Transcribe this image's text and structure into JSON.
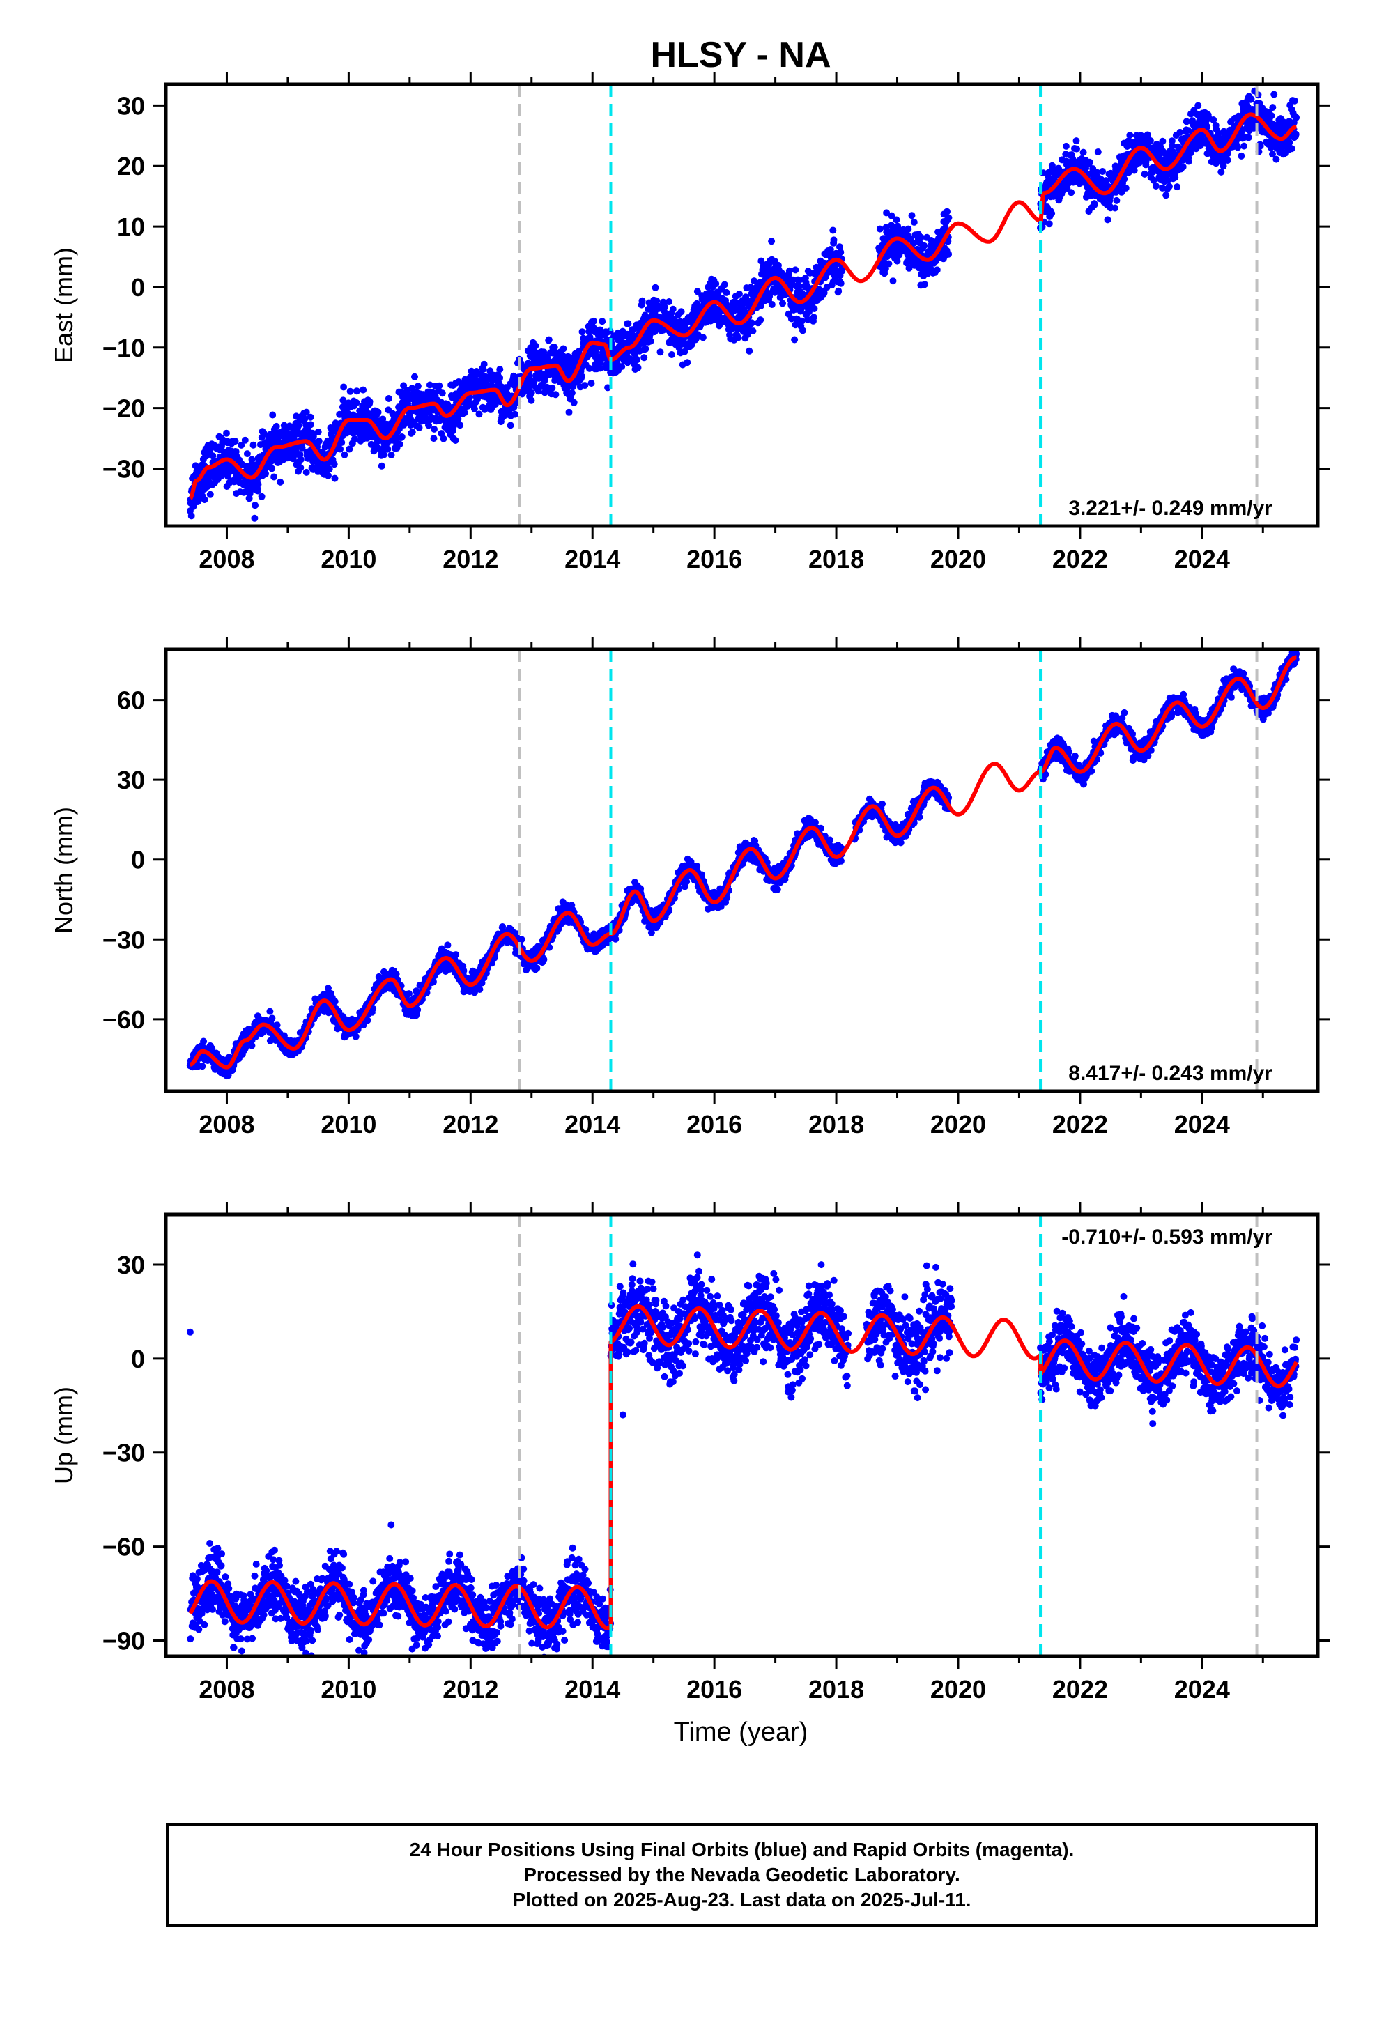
{
  "title": "HLSY - NA",
  "colors": {
    "data": "#0000ff",
    "model": "#ff0000",
    "gray_line": "#c0c0c0",
    "cyan_line": "#00e5ee"
  },
  "xlabel": "Time (year)",
  "x_ticks": [
    "2008",
    "2010",
    "2012",
    "2014",
    "2016",
    "2018",
    "2020",
    "2022",
    "2024"
  ],
  "footer": {
    "line1": "24 Hour Positions Using Final Orbits (blue) and Rapid Orbits (magenta).",
    "line2": "Processed by the Nevada Geodetic Laboratory.",
    "line3": "Plotted on 2025-Aug-23. Last data on 2025-Jul-11."
  },
  "chart_data": [
    {
      "type": "scatter",
      "component": "East",
      "ylabel": "East (mm)",
      "xlim": [
        2007.0,
        2025.9
      ],
      "ylim": [
        -39.5,
        33.5
      ],
      "y_ticks": [
        30,
        20,
        10,
        0,
        -10,
        -20,
        -30
      ],
      "rate_label": "3.221+/- 0.249 mm/yr",
      "rate_mm_per_yr": 3.221,
      "vertical_lines": [
        {
          "x": 2012.8,
          "color": "gray"
        },
        {
          "x": 2014.3,
          "color": "cyan"
        },
        {
          "x": 2021.35,
          "color": "cyan"
        },
        {
          "x": 2024.9,
          "color": "gray"
        }
      ],
      "model_knots": [
        [
          2007.4,
          -34.9
        ],
        [
          2007.5,
          -32
        ],
        [
          2007.7,
          -29.8
        ],
        [
          2008.0,
          -28.5
        ],
        [
          2008.4,
          -31.5
        ],
        [
          2008.8,
          -26.5
        ],
        [
          2009.3,
          -25.5
        ],
        [
          2009.6,
          -28.5
        ],
        [
          2010.0,
          -22
        ],
        [
          2010.3,
          -22
        ],
        [
          2010.6,
          -25
        ],
        [
          2011.0,
          -20
        ],
        [
          2011.4,
          -19.3
        ],
        [
          2011.6,
          -21.3
        ],
        [
          2012.0,
          -17.5
        ],
        [
          2012.4,
          -17.0
        ],
        [
          2012.6,
          -19.5
        ],
        [
          2013.0,
          -13.5
        ],
        [
          2013.4,
          -13.0
        ],
        [
          2013.6,
          -15.5
        ],
        [
          2014.0,
          -9.2
        ],
        [
          2014.2,
          -9.5
        ],
        [
          2014.3,
          -12
        ],
        [
          2014.6,
          -10
        ],
        [
          2015.0,
          -5.5
        ],
        [
          2015.5,
          -8
        ],
        [
          2016.0,
          -2.5
        ],
        [
          2016.4,
          -6
        ],
        [
          2017.0,
          1.5
        ],
        [
          2017.4,
          -2.5
        ],
        [
          2018.0,
          4.5
        ],
        [
          2018.4,
          1.0
        ],
        [
          2019.0,
          8.0
        ],
        [
          2019.5,
          4.5
        ],
        [
          2020.0,
          10.5
        ],
        [
          2020.5,
          7.5
        ],
        [
          2021.0,
          14.0
        ],
        [
          2021.35,
          11.0
        ],
        [
          2021.4,
          15.5
        ],
        [
          2021.9,
          19.5
        ],
        [
          2022.4,
          15.5
        ],
        [
          2023.0,
          23.0
        ],
        [
          2023.4,
          19.5
        ],
        [
          2024.0,
          26.0
        ],
        [
          2024.3,
          22.5
        ],
        [
          2024.8,
          28.5
        ],
        [
          2025.3,
          24.5
        ],
        [
          2025.55,
          26.5
        ]
      ],
      "data_segments": [
        {
          "start": 2007.4,
          "end": 2018.1,
          "scatter": 2.0
        },
        {
          "start": 2018.7,
          "end": 2019.85,
          "scatter": 2.0
        },
        {
          "start": 2021.35,
          "end": 2025.55,
          "scatter": 1.8
        }
      ]
    },
    {
      "type": "scatter",
      "component": "North",
      "ylabel": "North (mm)",
      "xlim": [
        2007.0,
        2025.9
      ],
      "ylim": [
        -87,
        79
      ],
      "y_ticks": [
        60,
        30,
        0,
        -30,
        -60
      ],
      "rate_label": "8.417+/- 0.243 mm/yr",
      "rate_mm_per_yr": 8.417,
      "vertical_lines": [
        {
          "x": 2012.8,
          "color": "gray"
        },
        {
          "x": 2014.3,
          "color": "cyan"
        },
        {
          "x": 2021.35,
          "color": "cyan"
        },
        {
          "x": 2024.9,
          "color": "gray"
        }
      ],
      "model_knots": [
        [
          2007.4,
          -77
        ],
        [
          2007.6,
          -72
        ],
        [
          2008.0,
          -78
        ],
        [
          2008.3,
          -68
        ],
        [
          2008.6,
          -62
        ],
        [
          2009.1,
          -71
        ],
        [
          2009.6,
          -53
        ],
        [
          2010.0,
          -64
        ],
        [
          2010.7,
          -45
        ],
        [
          2011.0,
          -55
        ],
        [
          2011.6,
          -37
        ],
        [
          2012.0,
          -47
        ],
        [
          2012.6,
          -28
        ],
        [
          2013.0,
          -38
        ],
        [
          2013.6,
          -20
        ],
        [
          2014.0,
          -32
        ],
        [
          2014.3,
          -28
        ],
        [
          2014.7,
          -12
        ],
        [
          2015.0,
          -23
        ],
        [
          2015.6,
          -4
        ],
        [
          2016.0,
          -16
        ],
        [
          2016.6,
          4
        ],
        [
          2017.0,
          -7
        ],
        [
          2017.6,
          12
        ],
        [
          2018.0,
          1
        ],
        [
          2018.6,
          20
        ],
        [
          2019.0,
          9
        ],
        [
          2019.6,
          27
        ],
        [
          2020.0,
          17
        ],
        [
          2020.6,
          36
        ],
        [
          2021.0,
          26
        ],
        [
          2021.35,
          33
        ],
        [
          2021.6,
          42
        ],
        [
          2022.0,
          33
        ],
        [
          2022.6,
          51
        ],
        [
          2023.0,
          41
        ],
        [
          2023.6,
          59
        ],
        [
          2024.0,
          50
        ],
        [
          2024.6,
          68
        ],
        [
          2025.0,
          57
        ],
        [
          2025.55,
          76
        ]
      ],
      "data_segments": [
        {
          "start": 2007.4,
          "end": 2018.1,
          "scatter": 1.8
        },
        {
          "start": 2018.3,
          "end": 2019.85,
          "scatter": 1.8
        },
        {
          "start": 2021.35,
          "end": 2025.55,
          "scatter": 1.8
        }
      ]
    },
    {
      "type": "scatter",
      "component": "Up",
      "ylabel": "Up (mm)",
      "xlim": [
        2007.0,
        2025.9
      ],
      "ylim": [
        -95,
        46
      ],
      "y_ticks": [
        30,
        0,
        -30,
        -60,
        -90
      ],
      "rate_label": "-0.710+/- 0.593 mm/yr",
      "rate_mm_per_yr": -0.71,
      "vertical_lines": [
        {
          "x": 2012.8,
          "color": "gray"
        },
        {
          "x": 2014.3,
          "color": "cyan"
        },
        {
          "x": 2021.35,
          "color": "cyan"
        },
        {
          "x": 2024.9,
          "color": "gray"
        }
      ],
      "model_segments": [
        {
          "start": 2007.4,
          "end": 2014.3,
          "offset": -77.5,
          "trend": -0.3,
          "amp": 6.5
        },
        {
          "start": 2014.3,
          "end": 2021.35,
          "offset": 11.0,
          "trend": -0.71,
          "amp": 6.0
        },
        {
          "start": 2021.35,
          "end": 2025.55,
          "offset": 0.0,
          "trend": -0.71,
          "amp": 6.0
        }
      ],
      "data_segments": [
        {
          "start": 2007.4,
          "end": 2014.3,
          "scatter": 4.5
        },
        {
          "start": 2014.3,
          "end": 2018.2,
          "scatter": 6.0
        },
        {
          "start": 2018.5,
          "end": 2019.9,
          "scatter": 6.0
        },
        {
          "start": 2021.35,
          "end": 2025.55,
          "scatter": 4.5
        }
      ]
    }
  ]
}
